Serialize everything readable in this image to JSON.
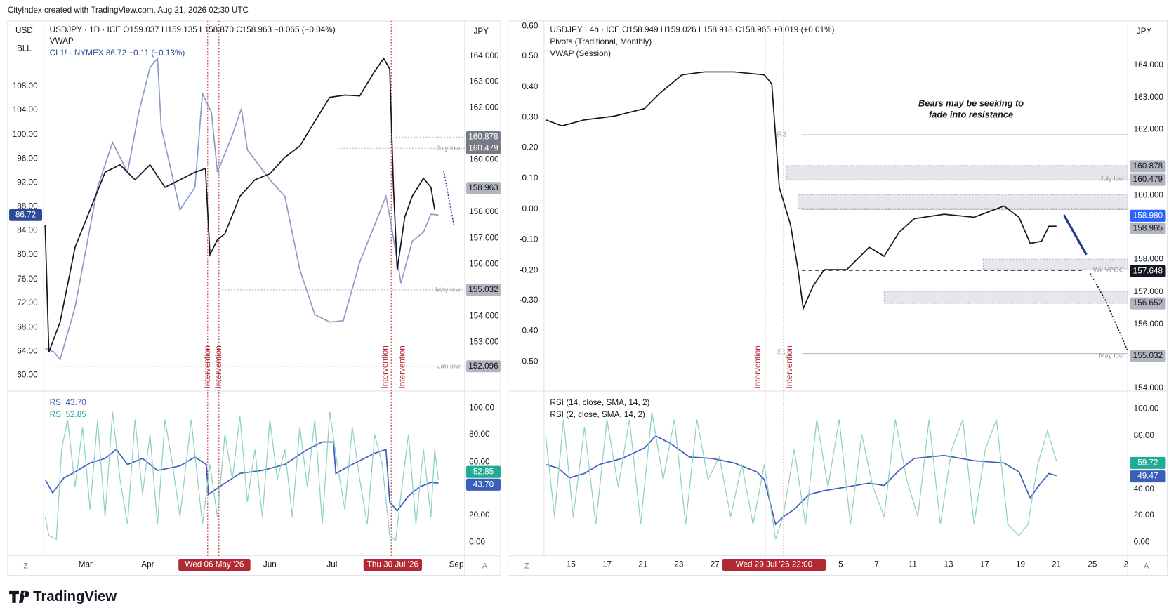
{
  "header": "CityIndex created with TradingView.com, Aug 21, 2026 02:30 UTC",
  "left_chart": {
    "scale_labels": [
      "USD",
      "BLL"
    ],
    "currency": "JPY",
    "legend": [
      "USDJPY · 1D · ICE   O159.037  H159.135  L158.870  C158.963  −0.065 (−0.04%)",
      "VWAP",
      "CL1! · NYMEX   86.72   −0.11 (−0.13%)"
    ],
    "left_axis": [
      "108.00",
      "104.00",
      "100.00",
      "96.00",
      "92.00",
      "88.00",
      "84.00",
      "80.00",
      "76.00",
      "72.00",
      "68.00",
      "64.00",
      "60.00"
    ],
    "left_tag": "86.72",
    "right_axis": [
      "164.000",
      "163.000",
      "162.000",
      "160.000",
      "158.000",
      "157.000",
      "156.000",
      "154.000",
      "153.000"
    ],
    "price_tags": [
      "160.878",
      "160.479",
      "158.963",
      "155.032",
      "152.096"
    ],
    "levels": [
      "July low",
      "May low",
      "Jan low"
    ],
    "events": [
      "Intervention",
      "Intervention",
      "Intervention",
      "Intervention"
    ],
    "rsi_legend": [
      "RSI  43.70",
      "RSI  52.85"
    ],
    "rsi_axis": [
      "100.00",
      "80.00",
      "60.00",
      "20.00",
      "0.00"
    ],
    "rsi_tags": [
      "52.85",
      "43.70"
    ],
    "time_axis": [
      "Mar",
      "Apr",
      "Jun",
      "Jul",
      "Sep"
    ],
    "time_tags": [
      "Wed 06 May '26",
      "Thu 30 Jul '26"
    ],
    "corner": [
      "Z",
      "A"
    ]
  },
  "right_chart": {
    "currency": "JPY",
    "legend": [
      "USDJPY · 4h · ICE   O158.949  H159.026  L158.918  C158.965  +0.019 (+0.01%)",
      "Pivots (Traditional, Monthly)",
      "VWAP (Session)"
    ],
    "left_axis": [
      "0.60",
      "0.50",
      "0.40",
      "0.30",
      "0.20",
      "0.10",
      "0.00",
      "-0.10",
      "-0.20",
      "-0.30",
      "-0.40",
      "-0.50"
    ],
    "right_axis": [
      "164.000",
      "163.000",
      "162.000",
      "160.000",
      "158.000",
      "157.000",
      "156.000",
      "154.000"
    ],
    "price_tags": [
      "160.878",
      "160.479",
      "158.980",
      "158.965",
      "157.648",
      "156.652",
      "155.032"
    ],
    "annotation": [
      "Bears may be seeking to",
      "fade into resistance"
    ],
    "pivots": [
      "R3",
      "S1"
    ],
    "levels": [
      "July low",
      "Wk VPOC",
      "May low"
    ],
    "events": [
      "Intervention",
      "Intervention"
    ],
    "rsi_legend": [
      "RSI (14, close, SMA, 14, 2)",
      "RSI (2, close, SMA, 14, 2)"
    ],
    "rsi_axis": [
      "100.00",
      "80.00",
      "40.00",
      "20.00",
      "0.00"
    ],
    "rsi_tags": [
      "59.72",
      "49.47"
    ],
    "time_axis": [
      "15",
      "17",
      "21",
      "23",
      "27",
      "5",
      "7",
      "11",
      "13",
      "17",
      "19",
      "21",
      "25",
      "2"
    ],
    "time_tags": [
      "Wed 29 Jul '26   22:00"
    ],
    "corner": [
      "Z",
      "A"
    ]
  },
  "footer": "TradingView"
}
